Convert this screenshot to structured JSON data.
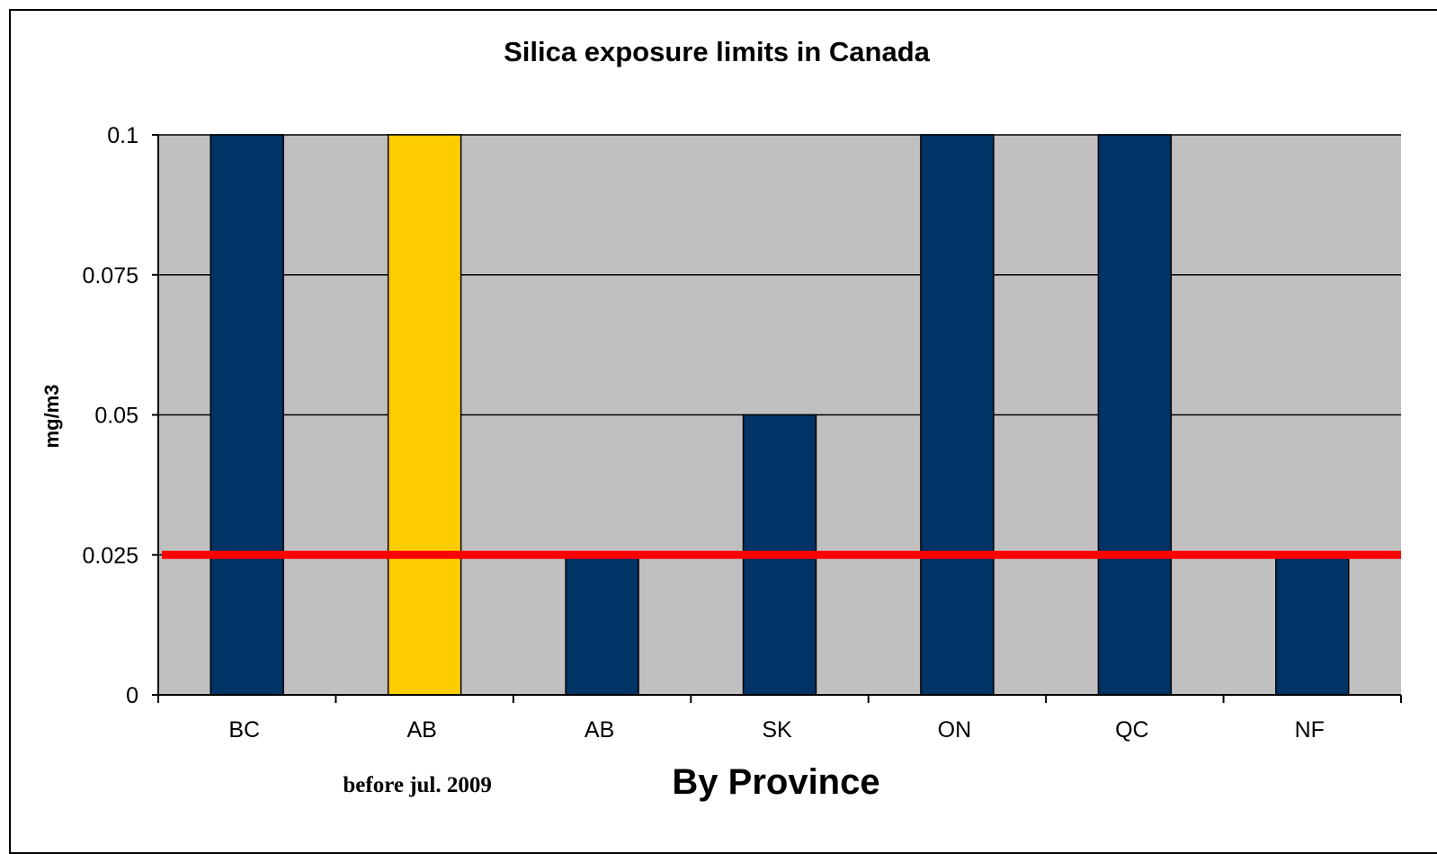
{
  "chart_data": {
    "type": "bar",
    "title": "Silica exposure limits in Canada",
    "xlabel": "By Province",
    "ylabel": "mg/m3",
    "categories": [
      "BC",
      "AB",
      "AB",
      "SK",
      "ON",
      "QC",
      "NF"
    ],
    "values": [
      0.1,
      0.1,
      0.025,
      0.05,
      0.1,
      0.1,
      0.025
    ],
    "ylim": [
      0,
      0.1
    ],
    "yticks": [
      0,
      0.025,
      0.05,
      0.075,
      0.1
    ],
    "ytick_labels": [
      "0",
      "0.025",
      "0.05",
      "0.075",
      "0.1"
    ],
    "grid": true,
    "bar_colors": [
      "#003366",
      "#FFCC00",
      "#003366",
      "#003366",
      "#003366",
      "#003366",
      "#003366"
    ],
    "plot_background": "#C0C0C0",
    "reference_line": {
      "value": 0.025,
      "color": "#FF0000"
    },
    "annotation": "before jul. 2009",
    "annotation_category_index": 1
  }
}
